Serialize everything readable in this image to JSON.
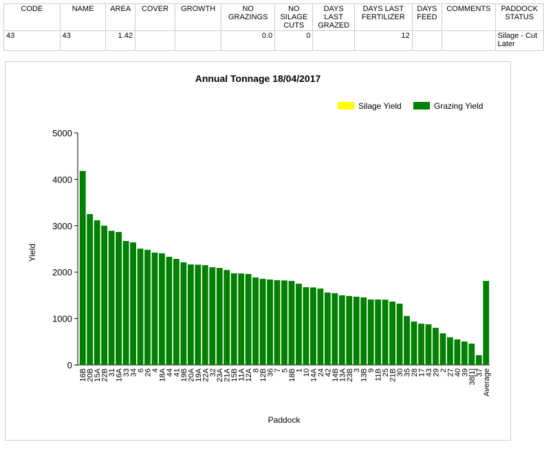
{
  "table": {
    "columns": [
      [
        "CODE"
      ],
      [
        "NAME"
      ],
      [
        "AREA"
      ],
      [
        "COVER"
      ],
      [
        "GROWTH"
      ],
      [
        "NO",
        "GRAZINGS"
      ],
      [
        "NO",
        "SILAGE",
        "CUTS"
      ],
      [
        "DAYS",
        "LAST",
        "GRAZED"
      ],
      [
        "DAYS LAST",
        "FERTILIZER"
      ],
      [
        "DAYS",
        "FEED"
      ],
      [
        "COMMENTS"
      ],
      [
        "PADDOCK",
        "STATUS"
      ]
    ],
    "rows": [
      [
        "43",
        "43",
        "1.42",
        null,
        null,
        "0.0",
        "0",
        null,
        "12",
        null,
        null,
        "Silage - Cut Later"
      ]
    ]
  },
  "chart_data": {
    "type": "bar",
    "title": "Annual Tonnage 18/04/2017",
    "x_label": "Paddock",
    "y_label": "Yield",
    "categories": [
      "16B",
      "20B",
      "15A",
      "22B",
      "31",
      "16A",
      "33",
      "34",
      "6",
      "26",
      "4",
      "18A",
      "44",
      "41",
      "19B",
      "20A",
      "19A",
      "22A",
      "32",
      "23A",
      "21A",
      "15B",
      "11A",
      "12A",
      "8",
      "12B",
      "36",
      "7",
      "5",
      "18B",
      "1",
      "10",
      "14A",
      "24",
      "42",
      "14B",
      "13A",
      "23B",
      "3",
      "13B",
      "9",
      "11B",
      "25",
      "21B",
      "30",
      "35",
      "28",
      "17",
      "43",
      "29",
      "2",
      "27",
      "40",
      "39",
      "38[1]",
      "37",
      "Average"
    ],
    "series": [
      {
        "name": "Silage Yield",
        "color": "#ffff00"
      },
      {
        "name": "Grazing Yield",
        "color": "#008000",
        "values": [
          4180,
          3250,
          3115,
          3000,
          2890,
          2865,
          2670,
          2640,
          2505,
          2480,
          2420,
          2405,
          2330,
          2285,
          2210,
          2165,
          2160,
          2150,
          2105,
          2090,
          2045,
          1975,
          1970,
          1960,
          1885,
          1855,
          1840,
          1825,
          1820,
          1810,
          1750,
          1675,
          1670,
          1645,
          1560,
          1545,
          1500,
          1485,
          1470,
          1455,
          1410,
          1410,
          1405,
          1365,
          1320,
          1055,
          935,
          890,
          875,
          800,
          680,
          595,
          550,
          505,
          460,
          210,
          1810
        ]
      }
    ],
    "ylim": [
      0,
      5000
    ],
    "yticks": [
      0,
      1000,
      2000,
      3000,
      4000,
      5000
    ]
  }
}
